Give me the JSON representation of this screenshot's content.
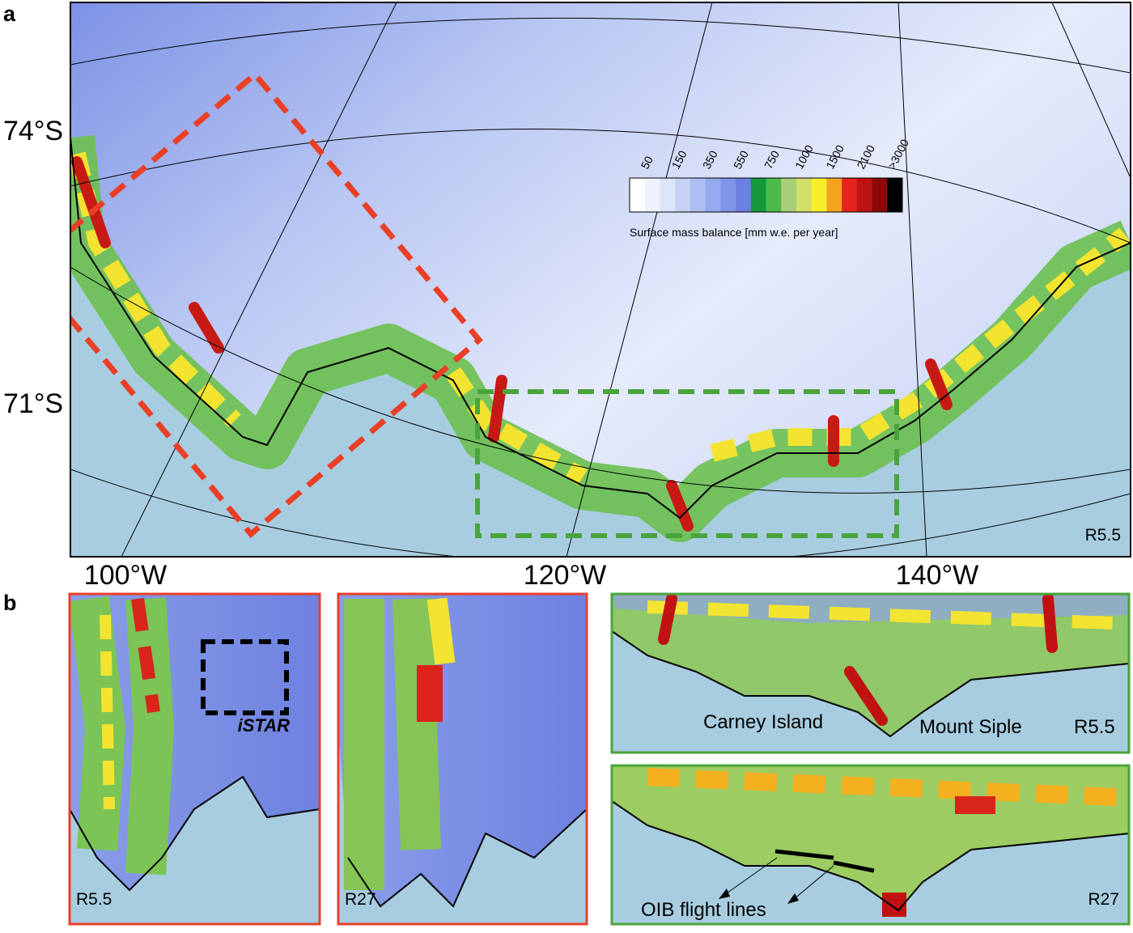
{
  "panel_a": {
    "label": "a",
    "lat_labels": [
      "74°S",
      "71°S"
    ],
    "lon_labels": [
      "100°W",
      "120°W",
      "140°W"
    ],
    "run": "R5.5",
    "colorbar": {
      "title": "Surface mass balance [mm w.e. per year]",
      "ticks": [
        "50",
        "150",
        "350",
        "550",
        "750",
        "1000",
        "1500",
        "2100",
        ">3000"
      ],
      "colors": [
        "#ffffff",
        "#eef2fc",
        "#dde5f8",
        "#c6d2f4",
        "#adbdf0",
        "#95a9ec",
        "#8094e8",
        "#6b80e2",
        "#149a3c",
        "#4cba4a",
        "#a6cf78",
        "#d2e067",
        "#f8ef2c",
        "#f5a31f",
        "#e6241c",
        "#c01212",
        "#8c0808",
        "#000000"
      ]
    }
  },
  "panel_b": {
    "label": "b",
    "insets": [
      {
        "run": "R5.5",
        "annotation": "iSTAR"
      },
      {
        "run": "R27"
      },
      {
        "run": "R5.5",
        "annotations": [
          "Carney Island",
          "Mount Siple"
        ]
      },
      {
        "run": "R27",
        "annotation": "OIB flight lines"
      }
    ]
  }
}
